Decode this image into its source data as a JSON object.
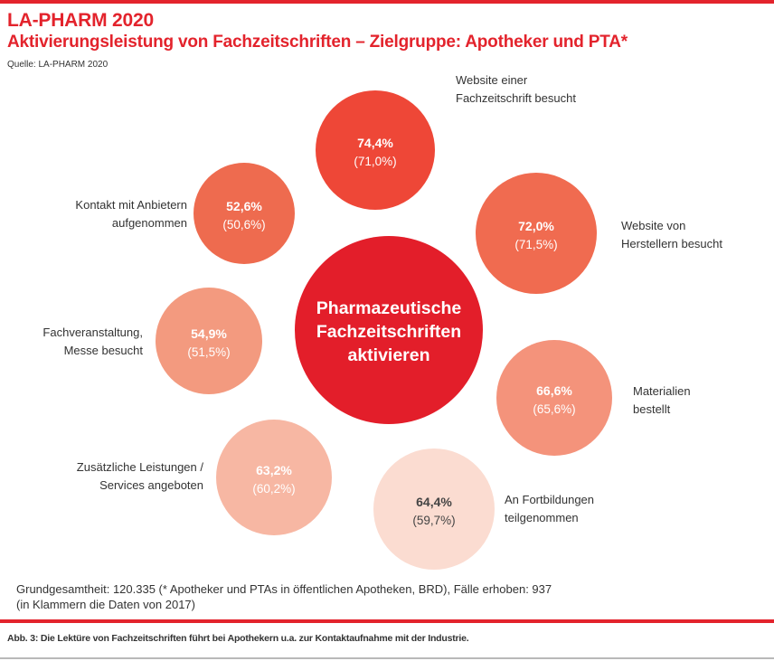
{
  "header": {
    "title": "LA-PHARM 2020",
    "subtitle": "Aktivierungsleistung von Fachzeitschriften – Zielgruppe: Apotheker und PTA*",
    "source": "Quelle: LA-PHARM 2020"
  },
  "footnote": {
    "line1": "Grundgesamtheit: 120.335 (* Apotheker und PTAs in öffentlichen Apotheken, BRD), Fälle erhoben: 937",
    "line2": "(in Klammern die Daten von 2017)"
  },
  "caption": "Abb. 3: Die Lektüre von Fachzeitschriften führt bei Apothekern u.a. zur Kontaktaufnahme mit der Industrie.",
  "colors": {
    "accent": "#e3232c",
    "center": "#e31e2a",
    "text": "#333333"
  },
  "chart_data": {
    "type": "bubble",
    "center_label": [
      "Pharmazeutische",
      "Fachzeitschriften",
      "aktivieren"
    ],
    "unit": "%",
    "series": [
      {
        "name": "2020",
        "format": "value"
      },
      {
        "name": "2017",
        "format": "in parentheses"
      }
    ],
    "items": [
      {
        "label": [
          "Website einer",
          "Fachzeitschrift besucht"
        ],
        "value_2020": 74.4,
        "value_2017": 71.0,
        "value_text": "74,4%",
        "prev_text": "(71,0%)",
        "color": "#ee4737"
      },
      {
        "label": [
          "Website von",
          "Herstellern besucht"
        ],
        "value_2020": 72.0,
        "value_2017": 71.5,
        "value_text": "72,0%",
        "prev_text": "(71,5%)",
        "color": "#f06b50"
      },
      {
        "label": [
          "Materialien",
          "bestellt"
        ],
        "value_2020": 66.6,
        "value_2017": 65.6,
        "value_text": "66,6%",
        "prev_text": "(65,6%)",
        "color": "#f4937b"
      },
      {
        "label": [
          "An Fortbildungen",
          "teilgenommen"
        ],
        "value_2020": 64.4,
        "value_2017": 59.7,
        "value_text": "64,4%",
        "prev_text": "(59,7%)",
        "color": "#fbdcd1"
      },
      {
        "label": [
          "Zusätzliche Leistungen /",
          "Services angeboten"
        ],
        "value_2020": 63.2,
        "value_2017": 60.2,
        "value_text": "63,2%",
        "prev_text": "(60,2%)",
        "color": "#f7b7a3"
      },
      {
        "label": [
          "Fachveranstaltung,",
          "Messe besucht"
        ],
        "value_2020": 54.9,
        "value_2017": 51.5,
        "value_text": "54,9%",
        "prev_text": "(51,5%)",
        "color": "#f39a7f"
      },
      {
        "label": [
          "Kontakt mit Anbietern",
          "aufgenommen"
        ],
        "value_2020": 52.6,
        "value_2017": 50.6,
        "value_text": "52,6%",
        "prev_text": "(50,6%)",
        "color": "#ee6b4f"
      }
    ]
  }
}
